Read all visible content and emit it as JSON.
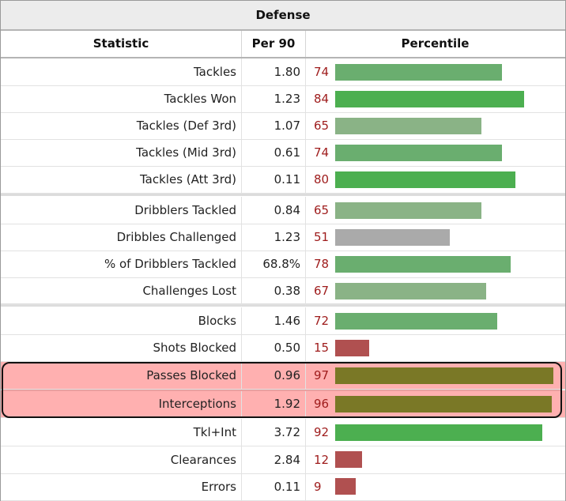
{
  "table": {
    "title": "Defense",
    "columns": [
      "Statistic",
      "Per 90",
      "Percentile"
    ]
  },
  "colors": {
    "high": "#4caf50",
    "mid_high": "#6aae6f",
    "mid": "#8ab386",
    "average": "#aaaaaa",
    "low": "#b05050",
    "highlight_bar": "#7a7826",
    "highlight_row": "#ffb0b0",
    "percentile_text": "#9e1b1b"
  },
  "groups": [
    [
      {
        "stat": "Tackles",
        "per90": "1.80",
        "percentile": 74
      },
      {
        "stat": "Tackles Won",
        "per90": "1.23",
        "percentile": 84
      },
      {
        "stat": "Tackles (Def 3rd)",
        "per90": "1.07",
        "percentile": 65
      },
      {
        "stat": "Tackles (Mid 3rd)",
        "per90": "0.61",
        "percentile": 74
      },
      {
        "stat": "Tackles (Att 3rd)",
        "per90": "0.11",
        "percentile": 80
      }
    ],
    [
      {
        "stat": "Dribblers Tackled",
        "per90": "0.84",
        "percentile": 65
      },
      {
        "stat": "Dribbles Challenged",
        "per90": "1.23",
        "percentile": 51
      },
      {
        "stat": "% of Dribblers Tackled",
        "per90": "68.8%",
        "percentile": 78
      },
      {
        "stat": "Challenges Lost",
        "per90": "0.38",
        "percentile": 67
      }
    ],
    [
      {
        "stat": "Blocks",
        "per90": "1.46",
        "percentile": 72
      },
      {
        "stat": "Shots Blocked",
        "per90": "0.50",
        "percentile": 15
      },
      {
        "stat": "Passes Blocked",
        "per90": "0.96",
        "percentile": 97,
        "highlighted": true
      },
      {
        "stat": "Interceptions",
        "per90": "1.92",
        "percentile": 96,
        "highlighted": true
      },
      {
        "stat": "Tkl+Int",
        "per90": "3.72",
        "percentile": 92
      },
      {
        "stat": "Clearances",
        "per90": "2.84",
        "percentile": 12
      },
      {
        "stat": "Errors",
        "per90": "0.11",
        "percentile": 9
      }
    ]
  ]
}
